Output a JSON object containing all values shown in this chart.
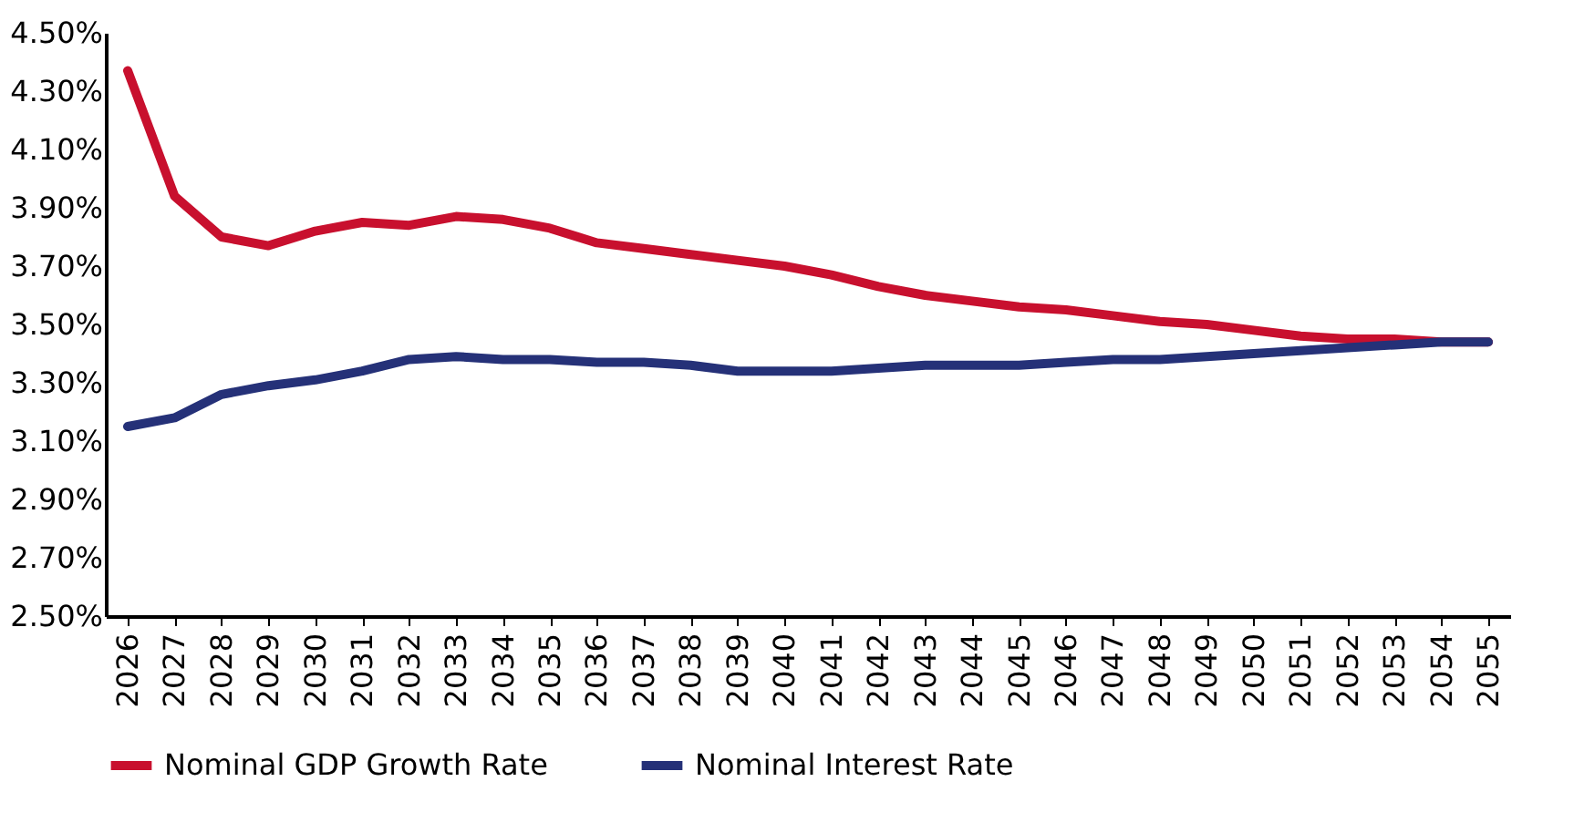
{
  "chart_data": {
    "type": "line",
    "categories": [
      "2026",
      "2027",
      "2028",
      "2029",
      "2030",
      "2031",
      "2032",
      "2033",
      "2034",
      "2035",
      "2036",
      "2037",
      "2038",
      "2039",
      "2040",
      "2041",
      "2042",
      "2043",
      "2044",
      "2045",
      "2046",
      "2047",
      "2048",
      "2049",
      "2050",
      "2051",
      "2052",
      "2053",
      "2054",
      "2055"
    ],
    "series": [
      {
        "name": "Nominal GDP Growth Rate",
        "color": "#c8102e",
        "values": [
          4.37,
          3.94,
          3.8,
          3.77,
          3.82,
          3.85,
          3.84,
          3.87,
          3.86,
          3.83,
          3.78,
          3.76,
          3.74,
          3.72,
          3.7,
          3.67,
          3.63,
          3.6,
          3.58,
          3.56,
          3.55,
          3.53,
          3.51,
          3.5,
          3.48,
          3.46,
          3.45,
          3.45,
          3.44,
          3.44
        ]
      },
      {
        "name": "Nominal Interest Rate",
        "color": "#253178",
        "values": [
          3.15,
          3.18,
          3.26,
          3.29,
          3.31,
          3.34,
          3.38,
          3.39,
          3.38,
          3.38,
          3.37,
          3.37,
          3.36,
          3.34,
          3.34,
          3.34,
          3.35,
          3.36,
          3.36,
          3.36,
          3.37,
          3.38,
          3.38,
          3.39,
          3.4,
          3.41,
          3.42,
          3.43,
          3.44,
          3.44
        ]
      }
    ],
    "ylim": [
      2.5,
      4.5
    ],
    "yticks": [
      {
        "value": 2.5,
        "label": "2.50%"
      },
      {
        "value": 2.7,
        "label": "2.70%"
      },
      {
        "value": 2.9,
        "label": "2.90%"
      },
      {
        "value": 3.1,
        "label": "3.10%"
      },
      {
        "value": 3.3,
        "label": "3.30%"
      },
      {
        "value": 3.5,
        "label": "3.50%"
      },
      {
        "value": 3.7,
        "label": "3.70%"
      },
      {
        "value": 3.9,
        "label": "3.90%"
      },
      {
        "value": 4.1,
        "label": "4.10%"
      },
      {
        "value": 4.3,
        "label": "4.30%"
      },
      {
        "value": 4.5,
        "label": "4.50%"
      }
    ],
    "grid": false,
    "legend": "bottom",
    "marker": "none",
    "line_style": "solid"
  }
}
